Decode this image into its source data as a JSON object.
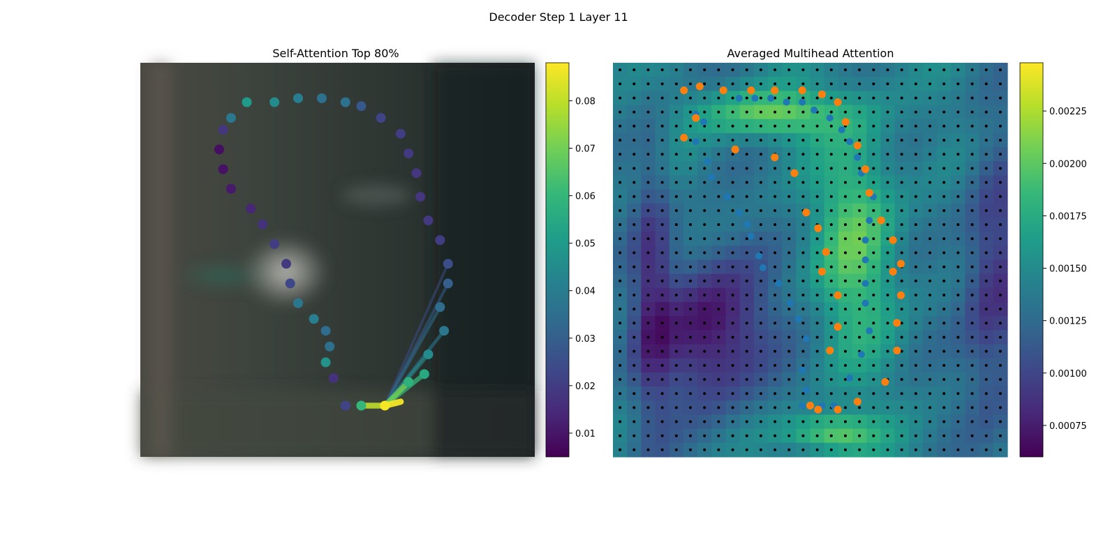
{
  "figure_title": "Decoder Step 1 Layer 11",
  "colormap": [
    "#440154",
    "#482878",
    "#3e4989",
    "#31688e",
    "#26828e",
    "#1f9e89",
    "#35b779",
    "#6ece58",
    "#b5de2b",
    "#fde725"
  ],
  "chart_data": [
    {
      "type": "scatter",
      "title": "Self-Attention Top 80%",
      "xlim": [
        0,
        1
      ],
      "ylim": [
        0,
        1
      ],
      "query_point": [
        0.62,
        0.87
      ],
      "colorbar": {
        "min": 0.005,
        "max": 0.088,
        "ticks": [
          "0.01",
          "0.02",
          "0.03",
          "0.04",
          "0.05",
          "0.06",
          "0.07",
          "0.08"
        ]
      },
      "points": [
        [
          0.34,
          0.1,
          0.045
        ],
        [
          0.4,
          0.09,
          0.04
        ],
        [
          0.46,
          0.09,
          0.036
        ],
        [
          0.52,
          0.1,
          0.036
        ],
        [
          0.56,
          0.11,
          0.028
        ],
        [
          0.61,
          0.14,
          0.022
        ],
        [
          0.66,
          0.18,
          0.02
        ],
        [
          0.68,
          0.23,
          0.019
        ],
        [
          0.7,
          0.28,
          0.018
        ],
        [
          0.71,
          0.34,
          0.018
        ],
        [
          0.73,
          0.4,
          0.019
        ],
        [
          0.76,
          0.45,
          0.02
        ],
        [
          0.78,
          0.51,
          0.025
        ],
        [
          0.78,
          0.56,
          0.03
        ],
        [
          0.76,
          0.62,
          0.034
        ],
        [
          0.77,
          0.68,
          0.038
        ],
        [
          0.73,
          0.74,
          0.045
        ],
        [
          0.72,
          0.79,
          0.055
        ],
        [
          0.68,
          0.81,
          0.058
        ],
        [
          0.62,
          0.87,
          0.087
        ],
        [
          0.56,
          0.87,
          0.06
        ],
        [
          0.52,
          0.87,
          0.022
        ],
        [
          0.49,
          0.8,
          0.017
        ],
        [
          0.47,
          0.76,
          0.047
        ],
        [
          0.48,
          0.72,
          0.035
        ],
        [
          0.47,
          0.68,
          0.034
        ],
        [
          0.44,
          0.65,
          0.04
        ],
        [
          0.4,
          0.61,
          0.038
        ],
        [
          0.38,
          0.56,
          0.023
        ],
        [
          0.37,
          0.51,
          0.019
        ],
        [
          0.34,
          0.46,
          0.02
        ],
        [
          0.31,
          0.41,
          0.017
        ],
        [
          0.28,
          0.37,
          0.014
        ],
        [
          0.23,
          0.32,
          0.011
        ],
        [
          0.21,
          0.27,
          0.009
        ],
        [
          0.2,
          0.22,
          0.008
        ],
        [
          0.21,
          0.17,
          0.018
        ],
        [
          0.23,
          0.14,
          0.038
        ],
        [
          0.27,
          0.1,
          0.05
        ]
      ],
      "attention_lines": [
        [
          0.78,
          0.51,
          0.025
        ],
        [
          0.78,
          0.56,
          0.03
        ],
        [
          0.76,
          0.62,
          0.034
        ],
        [
          0.77,
          0.68,
          0.038
        ],
        [
          0.73,
          0.74,
          0.045
        ],
        [
          0.72,
          0.79,
          0.06
        ],
        [
          0.68,
          0.81,
          0.07
        ],
        [
          0.56,
          0.87,
          0.08
        ],
        [
          0.66,
          0.86,
          0.087
        ]
      ]
    },
    {
      "type": "heatmap",
      "title": "Averaged Multihead Attention",
      "xlim": [
        0,
        1
      ],
      "ylim": [
        0,
        1
      ],
      "colorbar": {
        "min": 0.0006,
        "max": 0.00248,
        "ticks": [
          "0.00075",
          "0.00100",
          "0.00125",
          "0.00150",
          "0.00175",
          "0.00200",
          "0.00225"
        ]
      },
      "grid_size": 28,
      "blue_series": [
        [
          0.32,
          0.09
        ],
        [
          0.36,
          0.09
        ],
        [
          0.4,
          0.09
        ],
        [
          0.44,
          0.1
        ],
        [
          0.48,
          0.1
        ],
        [
          0.51,
          0.12
        ],
        [
          0.55,
          0.14
        ],
        [
          0.58,
          0.17
        ],
        [
          0.6,
          0.2
        ],
        [
          0.62,
          0.24
        ],
        [
          0.63,
          0.28
        ],
        [
          0.66,
          0.34
        ],
        [
          0.65,
          0.4
        ],
        [
          0.64,
          0.45
        ],
        [
          0.64,
          0.5
        ],
        [
          0.64,
          0.56
        ],
        [
          0.64,
          0.61
        ],
        [
          0.65,
          0.68
        ],
        [
          0.63,
          0.74
        ],
        [
          0.6,
          0.8
        ],
        [
          0.56,
          0.87
        ],
        [
          0.53,
          0.87
        ],
        [
          0.48,
          0.87
        ],
        [
          0.49,
          0.83
        ],
        [
          0.48,
          0.78
        ],
        [
          0.49,
          0.7
        ],
        [
          0.47,
          0.65
        ],
        [
          0.45,
          0.61
        ],
        [
          0.42,
          0.56
        ],
        [
          0.38,
          0.52
        ],
        [
          0.37,
          0.49
        ],
        [
          0.35,
          0.44
        ],
        [
          0.34,
          0.41
        ],
        [
          0.32,
          0.38
        ],
        [
          0.29,
          0.34
        ],
        [
          0.25,
          0.29
        ],
        [
          0.24,
          0.25
        ],
        [
          0.21,
          0.2
        ],
        [
          0.23,
          0.15
        ],
        [
          0.21,
          0.13
        ]
      ],
      "orange_series": [
        [
          0.18,
          0.07
        ],
        [
          0.22,
          0.06
        ],
        [
          0.28,
          0.07
        ],
        [
          0.35,
          0.07
        ],
        [
          0.41,
          0.07
        ],
        [
          0.48,
          0.07
        ],
        [
          0.53,
          0.08
        ],
        [
          0.57,
          0.1
        ],
        [
          0.59,
          0.15
        ],
        [
          0.62,
          0.21
        ],
        [
          0.64,
          0.27
        ],
        [
          0.65,
          0.33
        ],
        [
          0.68,
          0.4
        ],
        [
          0.71,
          0.45
        ],
        [
          0.71,
          0.53
        ],
        [
          0.73,
          0.51
        ],
        [
          0.73,
          0.59
        ],
        [
          0.72,
          0.66
        ],
        [
          0.72,
          0.73
        ],
        [
          0.69,
          0.81
        ],
        [
          0.62,
          0.86
        ],
        [
          0.57,
          0.88
        ],
        [
          0.52,
          0.88
        ],
        [
          0.5,
          0.87
        ],
        [
          0.55,
          0.73
        ],
        [
          0.57,
          0.67
        ],
        [
          0.57,
          0.59
        ],
        [
          0.53,
          0.53
        ],
        [
          0.54,
          0.48
        ],
        [
          0.52,
          0.42
        ],
        [
          0.49,
          0.38
        ],
        [
          0.46,
          0.28
        ],
        [
          0.41,
          0.24
        ],
        [
          0.31,
          0.22
        ],
        [
          0.18,
          0.19
        ],
        [
          0.21,
          0.14
        ]
      ]
    }
  ]
}
